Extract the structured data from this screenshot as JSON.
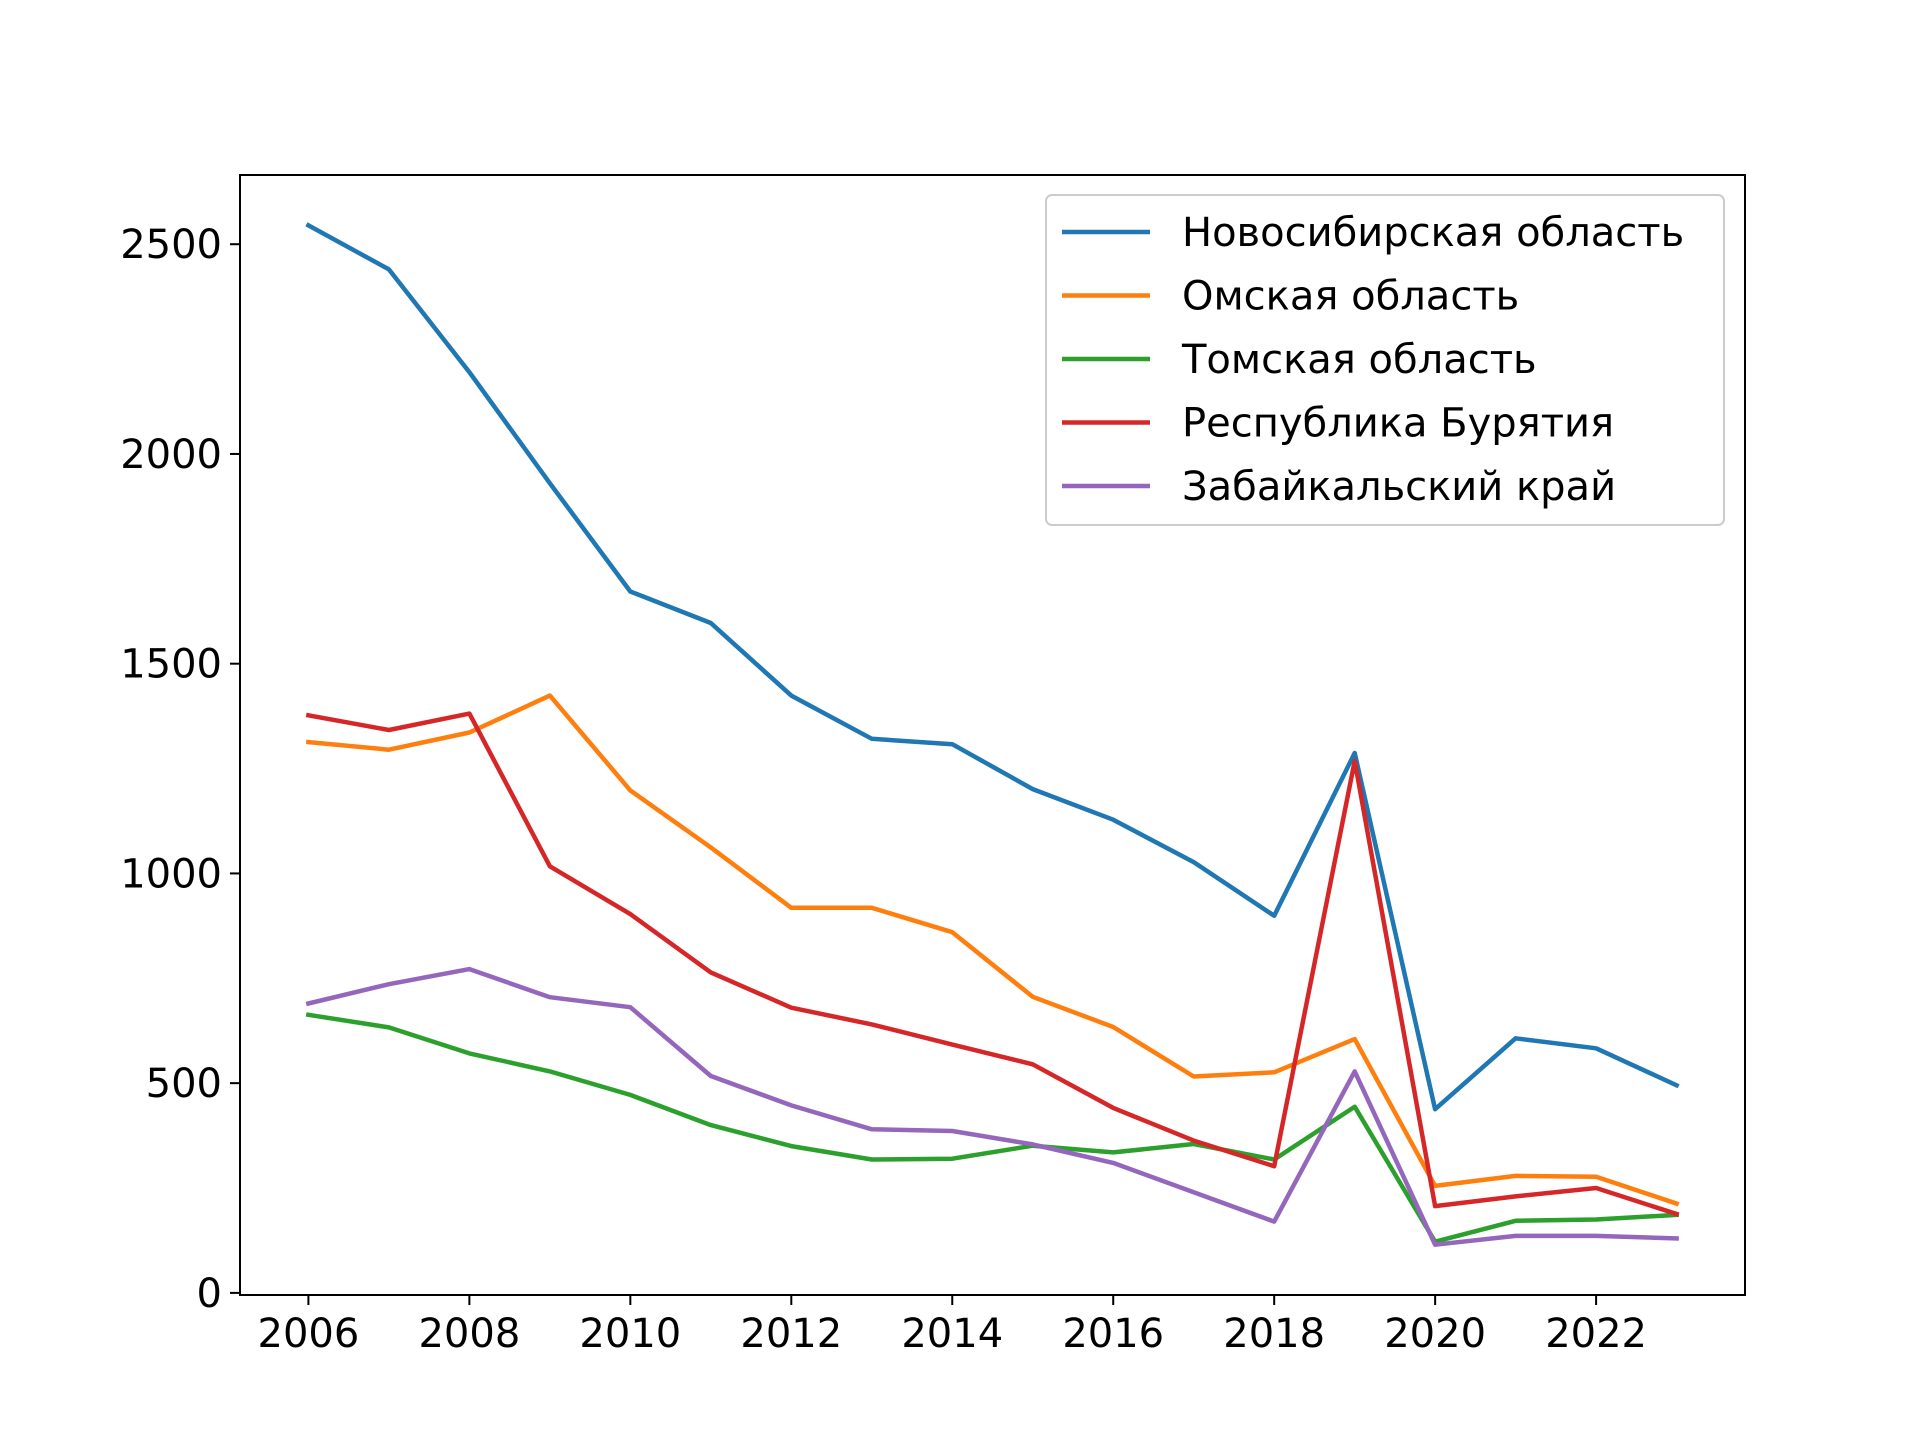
{
  "chart_data": {
    "type": "line",
    "title": "",
    "xlabel": "",
    "ylabel": "",
    "x": [
      2006,
      2007,
      2008,
      2009,
      2010,
      2011,
      2012,
      2013,
      2014,
      2015,
      2016,
      2017,
      2018,
      2019,
      2020,
      2021,
      2022,
      2023
    ],
    "xlim": [
      2005.15,
      2023.85
    ],
    "ylim": [
      -5,
      2665
    ],
    "xticks": [
      2006,
      2008,
      2010,
      2012,
      2014,
      2016,
      2018,
      2020,
      2022
    ],
    "yticks": [
      0,
      500,
      1000,
      1500,
      2000,
      2500
    ],
    "grid": false,
    "legend_position": "top-right",
    "series": [
      {
        "name": "Новосибирская область",
        "color": "#1f77b4",
        "values": [
          2545,
          2440,
          2195,
          1930,
          1672,
          1597,
          1424,
          1321,
          1308,
          1201,
          1128,
          1027,
          899,
          1287,
          438,
          607,
          583,
          495
        ]
      },
      {
        "name": "Омская область",
        "color": "#ff7f0e",
        "values": [
          1313,
          1295,
          1336,
          1424,
          1198,
          1062,
          918,
          918,
          860,
          706,
          634,
          516,
          526,
          605,
          255,
          279,
          277,
          213
        ]
      },
      {
        "name": "Томская область",
        "color": "#2ca02c",
        "values": [
          663,
          633,
          571,
          528,
          472,
          400,
          350,
          318,
          320,
          351,
          335,
          355,
          318,
          444,
          122,
          172,
          175,
          186
        ]
      },
      {
        "name": "Республика Бурятия",
        "color": "#d62728",
        "values": [
          1377,
          1342,
          1381,
          1017,
          903,
          764,
          680,
          640,
          592,
          545,
          441,
          363,
          302,
          1268,
          207,
          230,
          250,
          188
        ]
      },
      {
        "name": "Забайкальский край",
        "color": "#9467bd",
        "values": [
          690,
          736,
          772,
          705,
          681,
          517,
          447,
          390,
          386,
          354,
          310,
          240,
          170,
          528,
          115,
          136,
          136,
          130
        ]
      }
    ]
  }
}
